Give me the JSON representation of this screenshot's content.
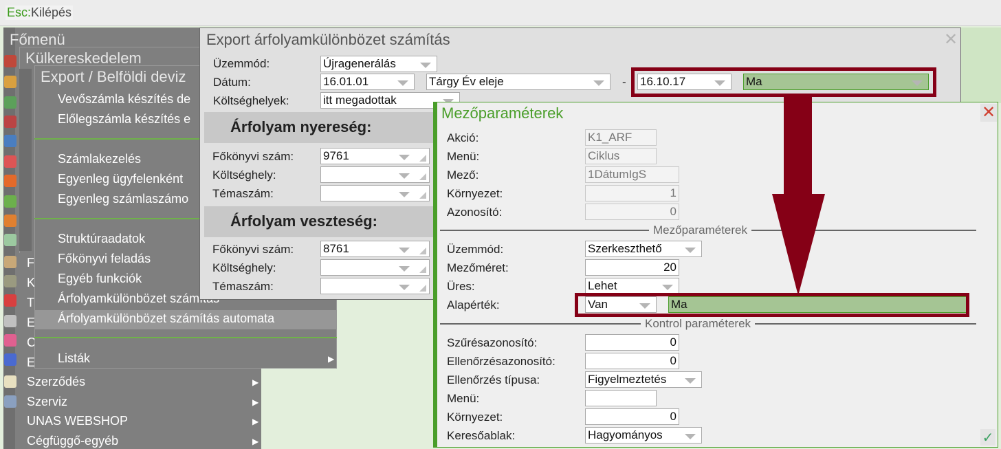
{
  "topbar": {
    "key": "Esc:",
    "action": "Kilépés"
  },
  "main_menu": {
    "title": "Főmenü",
    "items": [
      "F",
      "K",
      "T",
      "E",
      "C",
      "E",
      "Szerződés",
      "Szerviz",
      "UNAS WEBSHOP",
      "Cégfüggő-egyéb"
    ]
  },
  "submenu1": {
    "title": "Külkereskedelem"
  },
  "submenu2": {
    "title": "Export / Belföldi deviz",
    "items": [
      "Vevőszámla készítés de",
      "Előlegszámla készítés e",
      "Számlakezelés",
      "Egyenleg ügyfelenként",
      "Egyenleg számlaszámo",
      "Struktúraadatok",
      "Főkönyvi feladás",
      "Egyéb funkciók",
      "Árfolyamkülönbözet számítás",
      "Árfolyamkülönbözet számítás automata",
      "Listák"
    ],
    "highlighted": "Árfolyamkülönbözet számítás automata"
  },
  "export_dialog": {
    "title": "Export árfolyamkülönbözet számítás",
    "uzemmod": {
      "label": "Üzemmód:",
      "value": "Újragenerálás"
    },
    "datum": {
      "label": "Dátum:",
      "from": "16.01.01",
      "from_preset": "Tárgy Év eleje",
      "dash": "-",
      "to": "16.10.17",
      "to_preset": "Ma"
    },
    "koltseghelyek": {
      "label": "Költséghelyek:",
      "value": "itt megadottak"
    },
    "nyereseg": {
      "title": "Árfolyam nyereség:",
      "fokonyvi_label": "Főkönyvi szám:",
      "fokonyvi": "9761",
      "koltseghely_label": "Költséghely:",
      "koltseghely": "",
      "temaszam_label": "Témaszám:",
      "temaszam": ""
    },
    "veszteseg": {
      "title": "Árfolyam veszteség:",
      "fokonyvi_label": "Főkönyvi szám:",
      "fokonyvi": "8761",
      "koltseghely_label": "Költséghely:",
      "koltseghely": "",
      "temaszam_label": "Témaszám:",
      "temaszam": ""
    }
  },
  "field_dialog": {
    "title": "Mezőparaméterek",
    "akcio": {
      "label": "Akció:",
      "value": "K1_ARF"
    },
    "menu": {
      "label": "Menü:",
      "value": "Ciklus"
    },
    "mezo": {
      "label": "Mező:",
      "value": "1DátumIgS"
    },
    "kornyezet": {
      "label": "Környezet:",
      "value": "1"
    },
    "azonosito": {
      "label": "Azonosító:",
      "value": "0"
    },
    "section1": "Mezőparaméterek",
    "uzemmod": {
      "label": "Üzemmód:",
      "value": "Szerkeszthető"
    },
    "mezomeret": {
      "label": "Mezőméret:",
      "value": "20"
    },
    "ures": {
      "label": "Üres:",
      "value": "Lehet"
    },
    "alapertek": {
      "label": "Alapérték:",
      "mode": "Van",
      "value": "Ma"
    },
    "section2": "Kontrol paraméterek",
    "szuresazonosito": {
      "label": "Szűrésazonosító:",
      "value": "0"
    },
    "ellenorzesazonosito": {
      "label": "Ellenőrzésazonosító:",
      "value": "0"
    },
    "ellenorzes_tipusa": {
      "label": "Ellenőrzés típusa:",
      "value": "Figyelmeztetés"
    },
    "menu2": {
      "label": "Menü:",
      "value": ""
    },
    "kornyezet2": {
      "label": "Környezet:",
      "value": "0"
    },
    "keresoablak": {
      "label": "Keresőablak:",
      "value": "Hagyományos"
    }
  },
  "colors": {
    "annotation": "#850016",
    "accent_green": "#4a9e2a",
    "highlight_field": "#a5c594"
  }
}
